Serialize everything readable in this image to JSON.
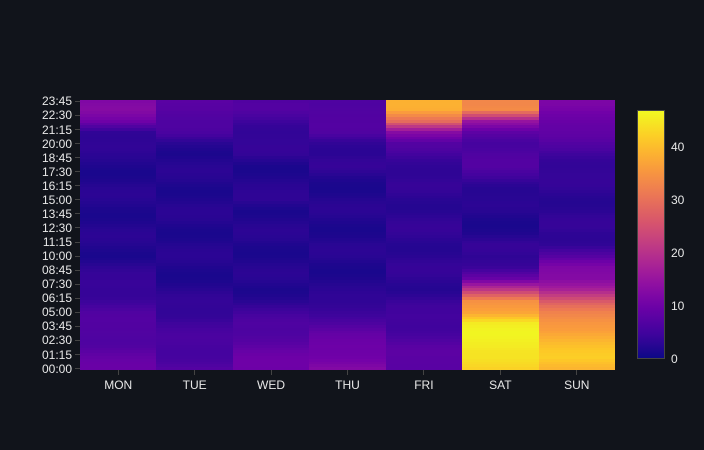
{
  "chart_data": {
    "type": "heatmap",
    "title": "",
    "xlabel": "",
    "ylabel": "",
    "x_categories": [
      "MON",
      "TUE",
      "WED",
      "THU",
      "FRI",
      "SAT",
      "SUN"
    ],
    "y_ticks": [
      "00:00",
      "01:15",
      "02:30",
      "03:45",
      "05:00",
      "06:15",
      "07:30",
      "08:45",
      "10:00",
      "11:15",
      "12:30",
      "13:45",
      "15:00",
      "16:15",
      "17:30",
      "18:45",
      "20:00",
      "21:15",
      "22:30",
      "23:45"
    ],
    "y_resolution": "15 minutes (96 rows, 00:00 to 23:45)",
    "z_range": [
      0,
      47
    ],
    "colorscale": "Plasma",
    "colorbar_ticks": [
      0,
      10,
      20,
      30,
      40
    ],
    "hourly_values_note": "Estimated average value per hour (index 0 = 00:00 hour ... 23 = 23:00 hour)",
    "series": [
      {
        "name": "MON",
        "values": [
          9,
          8,
          7,
          7,
          6,
          6,
          5,
          4,
          3,
          3,
          2,
          2,
          2,
          2,
          2,
          2,
          2,
          2,
          2,
          2,
          3,
          4,
          10,
          12
        ]
      },
      {
        "name": "TUE",
        "values": [
          7,
          6,
          5,
          5,
          5,
          4,
          3,
          2,
          2,
          2,
          2,
          2,
          2,
          2,
          2,
          2,
          2,
          2,
          2,
          2,
          3,
          5,
          6,
          8
        ]
      },
      {
        "name": "WED",
        "values": [
          10,
          9,
          8,
          7,
          6,
          4,
          3,
          2,
          2,
          2,
          2,
          2,
          2,
          2,
          2,
          3,
          2,
          2,
          2,
          3,
          3,
          4,
          5,
          6
        ]
      },
      {
        "name": "THU",
        "values": [
          12,
          11,
          10,
          8,
          6,
          5,
          3,
          2,
          2,
          2,
          2,
          2,
          2,
          2,
          2,
          2,
          2,
          2,
          3,
          3,
          4,
          6,
          6,
          7
        ]
      },
      {
        "name": "FRI",
        "values": [
          8,
          7,
          7,
          6,
          5,
          4,
          4,
          3,
          3,
          3,
          3,
          3,
          3,
          3,
          3,
          3,
          3,
          3,
          4,
          5,
          6,
          13,
          30,
          38
        ]
      },
      {
        "name": "SAT",
        "values": [
          42,
          45,
          46,
          46,
          45,
          38,
          35,
          20,
          9,
          5,
          3,
          3,
          2,
          2,
          2,
          2,
          3,
          5,
          6,
          6,
          6,
          8,
          14,
          34
        ]
      },
      {
        "name": "SUN",
        "values": [
          40,
          42,
          40,
          38,
          36,
          32,
          26,
          18,
          13,
          11,
          7,
          4,
          3,
          3,
          3,
          3,
          3,
          3,
          4,
          5,
          6,
          8,
          10,
          11
        ]
      }
    ]
  },
  "colors": {
    "background": "#11141b",
    "axis_text": "#e8e8e8",
    "tick_mark": "#444444"
  }
}
